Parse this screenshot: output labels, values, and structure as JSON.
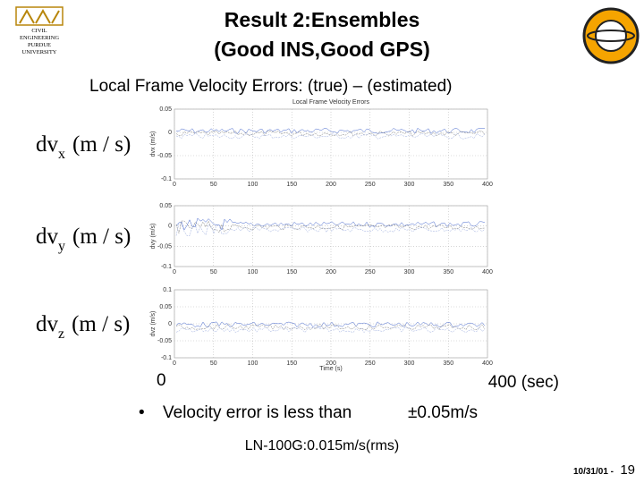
{
  "header": {
    "title_line1": "Result 2:Ensembles",
    "title_line2": "(Good INS,Good GPS)",
    "logo_left": [
      "CIVIL",
      "ENGINEERING",
      "PURDUE",
      "UNIVERSITY"
    ]
  },
  "subtitle": "Local Frame Velocity Errors: (true) – (estimated)",
  "figure": {
    "title": "Local Frame Velocity Errors",
    "xlabel": "Time (s)",
    "xticks": [
      "0",
      "50",
      "100",
      "150",
      "200",
      "250",
      "300",
      "350",
      "400"
    ],
    "panels": [
      {
        "ylabel": "dvx (m/s)",
        "yticks": [
          "0.05",
          "0",
          "-0.05",
          "-0.1"
        ],
        "side_base": "dv",
        "side_sub": "x",
        "side_unit": "(m / s)"
      },
      {
        "ylabel": "dvy (m/s)",
        "yticks": [
          "0.05",
          "0",
          "-0.05",
          "-0.1"
        ],
        "side_base": "dv",
        "side_sub": "y",
        "side_unit": "(m / s)"
      },
      {
        "ylabel": "dvz (m/s)",
        "yticks": [
          "0.1",
          "0.05",
          "0",
          "-0.05",
          "-0.1"
        ],
        "side_base": "dv",
        "side_sub": "z",
        "side_unit": "(m / s)"
      }
    ]
  },
  "axis_notes": {
    "start": "0",
    "end": "400 (sec)"
  },
  "bullet": {
    "text": "Velocity error is less than",
    "value": "±0.05m/s"
  },
  "note": "LN-100G:0.015m/s(rms)",
  "footer": {
    "date": "10/31/01 -",
    "page": "19"
  }
}
